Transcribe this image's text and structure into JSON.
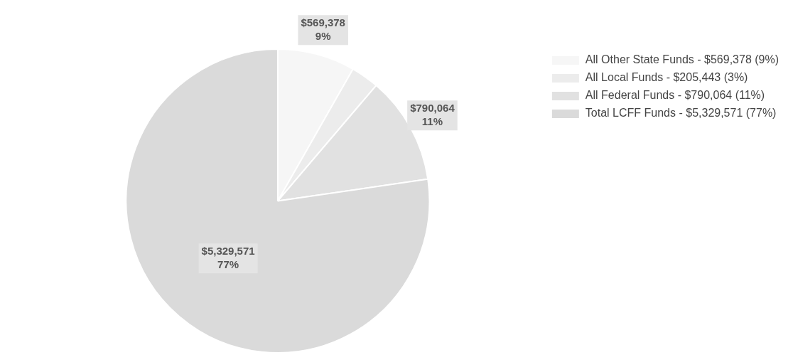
{
  "chart_data": {
    "type": "pie",
    "categories": [
      "All Other State Funds - $569,378 (9%)",
      "All Local Funds - $205,443 (3%)",
      "All Federal Funds - $790,064 (11%)",
      "Total LCFF Funds - $5,329,571 (77%)"
    ],
    "values": [
      569378,
      205443,
      790064,
      5329571
    ],
    "colors": [
      "#f6f6f6",
      "#ececec",
      "#e1e1e1",
      "#dadada"
    ],
    "value_labels": [
      "$569,378\n9%",
      null,
      "$790,064\n11%",
      "$5,329,571\n77%"
    ],
    "legend": "top right"
  }
}
